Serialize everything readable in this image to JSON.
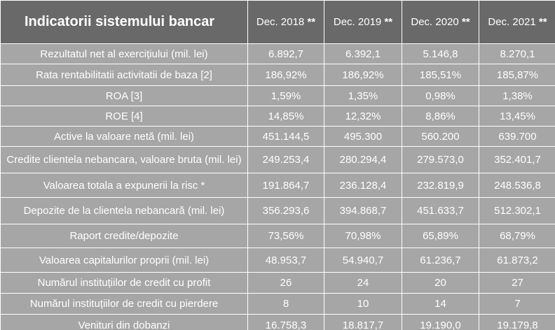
{
  "table": {
    "title": "Indicatorii sistemului bancar",
    "stars": "**",
    "columns": [
      "Dec. 2018",
      "Dec. 2019",
      "Dec. 2020",
      "Dec. 2021"
    ],
    "rows": [
      {
        "label": "Rezultatul net al exercițiului (mil. lei)",
        "values": [
          "6.892,7",
          "6.392,1",
          "5.146,8",
          "8.270,1"
        ]
      },
      {
        "label": "Rata rentabilitatii activitatii de baza [2]",
        "values": [
          "186,92%",
          "186,92%",
          "185,51%",
          "185,87%"
        ]
      },
      {
        "label": "ROA [3]",
        "values": [
          "1,59%",
          "1,35%",
          "0,98%",
          "1,38%"
        ]
      },
      {
        "label": "ROE [4]",
        "values": [
          "14,85%",
          "12,32%",
          "8,86%",
          "13,45%"
        ]
      },
      {
        "label": "Active la valoare netă (mil. lei)",
        "values": [
          "451.144,5",
          "495.300",
          "560.200",
          "639.700"
        ]
      },
      {
        "label": "Credite clientela nebancara, valoare bruta (mil. lei)",
        "values": [
          "249.253,4",
          "280.294,4",
          "279.573,0",
          "352.401,7"
        ]
      },
      {
        "label": "Valoarea totala a expunerii la risc *",
        "values": [
          "191.864,7",
          "236.128,4",
          "232.819,9",
          "248.536,8"
        ]
      },
      {
        "label": "Depozite de la clientela nebancară (mil. lei)",
        "values": [
          "356.293,6",
          "394.868,7",
          "451.633,7",
          "512.302,1"
        ]
      },
      {
        "label": "Raport credite/depozite",
        "values": [
          "73,56%",
          "70,98%",
          "65,89%",
          "68,79%"
        ]
      },
      {
        "label": "Valoarea capitalurilor proprii  (mil. lei)",
        "values": [
          "48.953,7",
          "54.940,7",
          "61.236,7",
          "61.873,2"
        ]
      },
      {
        "label": "Numărul instituțiilor de credit cu profit",
        "values": [
          "26",
          "24",
          "20",
          "27"
        ]
      },
      {
        "label": "Numărul instituțiilor de credit cu pierdere",
        "values": [
          "8",
          "10",
          "14",
          "7"
        ]
      },
      {
        "label": "Venituri din dobanzi",
        "values": [
          "16.758,3",
          "18.817,7",
          "19.190,0",
          "19.179,8"
        ]
      }
    ]
  }
}
